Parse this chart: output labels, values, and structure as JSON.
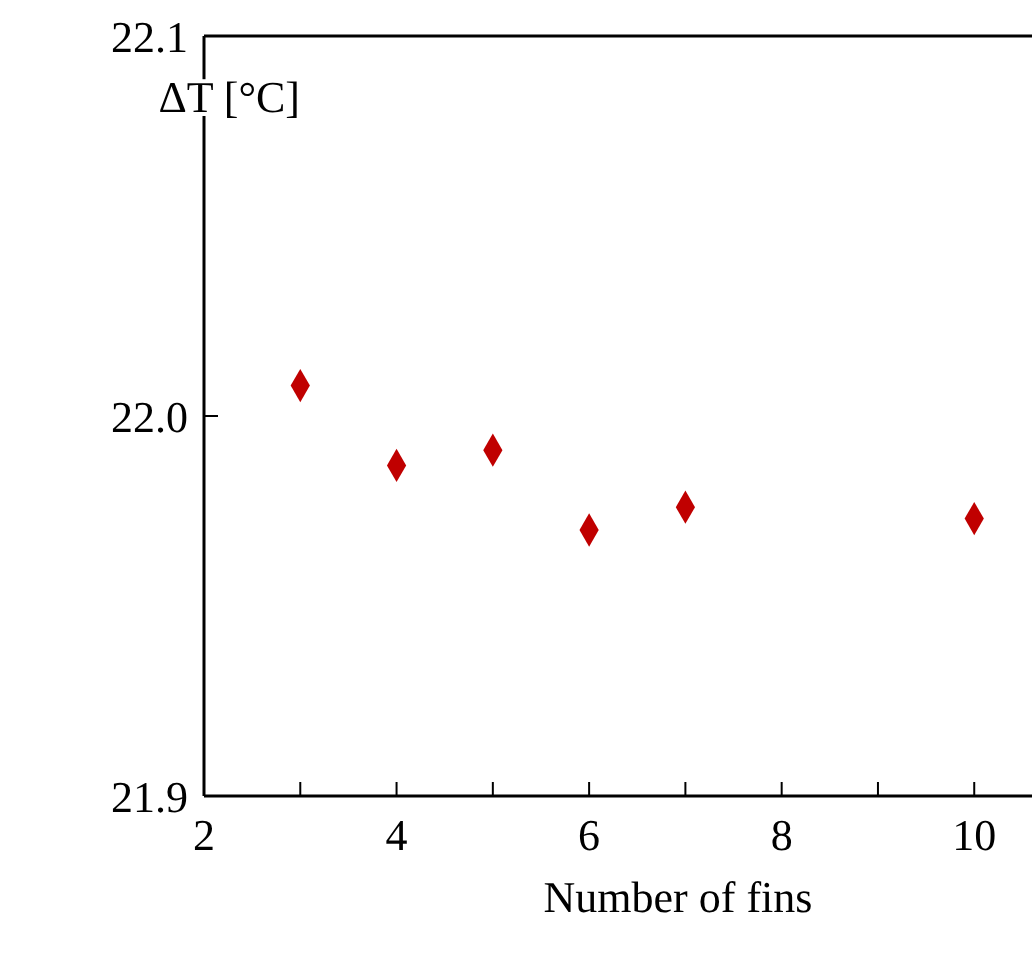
{
  "chart_data": {
    "type": "scatter",
    "xlabel": "Number of fins",
    "ylabel": "ΔT [°C]",
    "x": [
      3,
      4,
      5,
      6,
      7,
      10
    ],
    "series": [
      {
        "color": "#c00000",
        "values": [
          22.008,
          21.987,
          21.991,
          21.97,
          21.976,
          21.973
        ]
      }
    ],
    "marker": "diamond",
    "xlim": [
      2,
      10.6
    ],
    "xticks": [
      2,
      {
        "value": 3,
        "label": null
      },
      4,
      {
        "value": 5,
        "label": null
      },
      6,
      {
        "value": 7,
        "label": null
      },
      8,
      {
        "value": 9,
        "label": null
      },
      10
    ],
    "ylim": [
      21.9,
      22.1
    ],
    "yticks": [
      {
        "value": 21.9,
        "label": "21.9"
      },
      {
        "value": 22.0,
        "label": "22.0"
      },
      {
        "value": 22.1,
        "label": "22.1"
      }
    ],
    "grid": false
  }
}
